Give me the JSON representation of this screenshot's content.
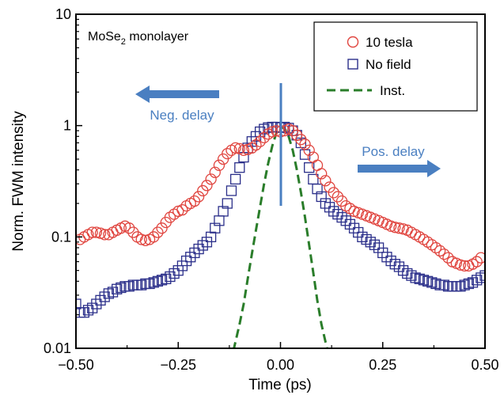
{
  "chart_data": {
    "type": "scatter",
    "xlabel": "Time (ps)",
    "ylabel": "Norm. FWM intensity",
    "xlim": [
      -0.5,
      0.5
    ],
    "ylim": [
      0.01,
      10
    ],
    "yscale": "log",
    "grid": false,
    "legend_position": "top-right",
    "x_ticks": [
      -0.5,
      -0.25,
      0.0,
      0.25,
      0.5
    ],
    "x_tick_labels": [
      "−0.50",
      "−0.25",
      "0.00",
      "0.25",
      "0.50"
    ],
    "y_ticks": [
      0.01,
      0.1,
      1,
      10
    ],
    "y_tick_labels": [
      "0.01",
      "0.1",
      "1",
      "10"
    ],
    "annotations": {
      "sample": {
        "main": "MoSe",
        "sub": "2",
        "rest": " monolayer"
      },
      "neg_delay": "Neg. delay",
      "pos_delay": "Pos. delay"
    },
    "colors": {
      "tesla": "#e0453f",
      "nofield": "#2b2f8a",
      "inst": "#2a7d2a",
      "arrow": "#4a7fc1",
      "zero_line": "#4a7fc1"
    },
    "series": [
      {
        "name": "10 tesla",
        "marker": "circle",
        "x": [
          -0.49,
          -0.48,
          -0.47,
          -0.46,
          -0.45,
          -0.44,
          -0.43,
          -0.42,
          -0.41,
          -0.4,
          -0.39,
          -0.38,
          -0.37,
          -0.36,
          -0.35,
          -0.34,
          -0.33,
          -0.32,
          -0.31,
          -0.3,
          -0.29,
          -0.28,
          -0.27,
          -0.26,
          -0.25,
          -0.24,
          -0.23,
          -0.22,
          -0.21,
          -0.2,
          -0.19,
          -0.18,
          -0.17,
          -0.16,
          -0.15,
          -0.14,
          -0.13,
          -0.12,
          -0.11,
          -0.1,
          -0.09,
          -0.08,
          -0.07,
          -0.06,
          -0.05,
          -0.04,
          -0.03,
          -0.02,
          -0.01,
          0.0,
          0.01,
          0.02,
          0.03,
          0.04,
          0.05,
          0.06,
          0.07,
          0.08,
          0.09,
          0.1,
          0.11,
          0.12,
          0.13,
          0.14,
          0.15,
          0.16,
          0.17,
          0.18,
          0.19,
          0.2,
          0.21,
          0.22,
          0.23,
          0.24,
          0.25,
          0.26,
          0.27,
          0.28,
          0.29,
          0.3,
          0.31,
          0.32,
          0.33,
          0.34,
          0.35,
          0.36,
          0.37,
          0.38,
          0.39,
          0.4,
          0.41,
          0.42,
          0.43,
          0.44,
          0.45,
          0.46,
          0.47,
          0.48,
          0.49
        ],
        "y": [
          0.095,
          0.1,
          0.105,
          0.11,
          0.11,
          0.108,
          0.105,
          0.105,
          0.11,
          0.115,
          0.12,
          0.125,
          0.12,
          0.11,
          0.1,
          0.095,
          0.093,
          0.095,
          0.1,
          0.11,
          0.12,
          0.135,
          0.15,
          0.16,
          0.17,
          0.175,
          0.19,
          0.2,
          0.21,
          0.23,
          0.26,
          0.29,
          0.33,
          0.38,
          0.44,
          0.5,
          0.56,
          0.6,
          0.63,
          0.62,
          0.6,
          0.61,
          0.63,
          0.67,
          0.72,
          0.78,
          0.84,
          0.88,
          0.9,
          0.88,
          0.9,
          0.93,
          0.9,
          0.82,
          0.75,
          0.68,
          0.6,
          0.52,
          0.44,
          0.37,
          0.32,
          0.28,
          0.25,
          0.23,
          0.21,
          0.19,
          0.18,
          0.17,
          0.165,
          0.16,
          0.155,
          0.15,
          0.145,
          0.14,
          0.135,
          0.13,
          0.125,
          0.122,
          0.12,
          0.118,
          0.115,
          0.11,
          0.105,
          0.1,
          0.095,
          0.09,
          0.085,
          0.08,
          0.075,
          0.07,
          0.065,
          0.06,
          0.058,
          0.056,
          0.055,
          0.055,
          0.057,
          0.06,
          0.065
        ]
      },
      {
        "name": "No field",
        "marker": "square",
        "x": [
          -0.5,
          -0.49,
          -0.48,
          -0.47,
          -0.46,
          -0.45,
          -0.44,
          -0.43,
          -0.42,
          -0.41,
          -0.4,
          -0.39,
          -0.38,
          -0.37,
          -0.36,
          -0.35,
          -0.34,
          -0.33,
          -0.32,
          -0.31,
          -0.3,
          -0.29,
          -0.28,
          -0.27,
          -0.26,
          -0.25,
          -0.24,
          -0.23,
          -0.22,
          -0.21,
          -0.2,
          -0.19,
          -0.18,
          -0.17,
          -0.16,
          -0.15,
          -0.14,
          -0.13,
          -0.12,
          -0.11,
          -0.1,
          -0.09,
          -0.08,
          -0.07,
          -0.06,
          -0.05,
          -0.04,
          -0.03,
          -0.02,
          -0.01,
          0.0,
          0.01,
          0.02,
          0.03,
          0.04,
          0.05,
          0.06,
          0.07,
          0.08,
          0.09,
          0.1,
          0.11,
          0.12,
          0.13,
          0.14,
          0.15,
          0.16,
          0.17,
          0.18,
          0.19,
          0.2,
          0.21,
          0.22,
          0.23,
          0.24,
          0.25,
          0.26,
          0.27,
          0.28,
          0.29,
          0.3,
          0.31,
          0.32,
          0.33,
          0.34,
          0.35,
          0.36,
          0.37,
          0.38,
          0.39,
          0.4,
          0.41,
          0.42,
          0.43,
          0.44,
          0.45,
          0.46,
          0.47,
          0.48,
          0.49,
          0.5
        ],
        "y": [
          0.025,
          0.021,
          0.021,
          0.022,
          0.023,
          0.025,
          0.027,
          0.029,
          0.031,
          0.032,
          0.034,
          0.035,
          0.036,
          0.036,
          0.037,
          0.037,
          0.037,
          0.038,
          0.038,
          0.039,
          0.04,
          0.041,
          0.042,
          0.044,
          0.047,
          0.05,
          0.055,
          0.061,
          0.066,
          0.072,
          0.078,
          0.084,
          0.09,
          0.1,
          0.12,
          0.14,
          0.17,
          0.2,
          0.26,
          0.33,
          0.42,
          0.52,
          0.63,
          0.72,
          0.8,
          0.88,
          0.93,
          0.96,
          0.97,
          0.97,
          0.96,
          0.97,
          0.95,
          0.9,
          0.82,
          0.7,
          0.55,
          0.42,
          0.33,
          0.27,
          0.23,
          0.2,
          0.185,
          0.17,
          0.16,
          0.15,
          0.14,
          0.13,
          0.12,
          0.11,
          0.1,
          0.095,
          0.09,
          0.085,
          0.08,
          0.072,
          0.066,
          0.061,
          0.057,
          0.054,
          0.05,
          0.047,
          0.045,
          0.043,
          0.042,
          0.041,
          0.04,
          0.039,
          0.038,
          0.037,
          0.037,
          0.036,
          0.036,
          0.036,
          0.036,
          0.037,
          0.038,
          0.039,
          0.041,
          0.043,
          0.045
        ]
      },
      {
        "name": "Inst.",
        "marker": "dashed-line",
        "x": [
          -0.115,
          -0.1,
          -0.09,
          -0.08,
          -0.07,
          -0.06,
          -0.05,
          -0.04,
          -0.03,
          -0.02,
          -0.01,
          0.0,
          0.01,
          0.02,
          0.03,
          0.04,
          0.05,
          0.06,
          0.07,
          0.08,
          0.09,
          0.1,
          0.115
        ],
        "y": [
          0.0095,
          0.0165,
          0.025,
          0.042,
          0.07,
          0.115,
          0.185,
          0.3,
          0.46,
          0.66,
          0.86,
          0.98,
          0.94,
          0.8,
          0.6,
          0.4,
          0.25,
          0.15,
          0.085,
          0.048,
          0.027,
          0.0165,
          0.0095
        ]
      }
    ]
  }
}
